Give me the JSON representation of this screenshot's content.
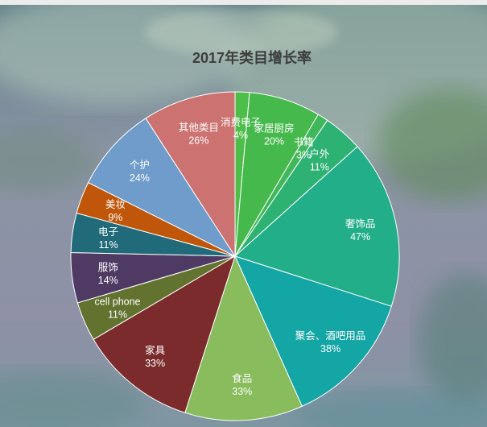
{
  "chart_data": {
    "type": "pie",
    "title": "2017年类目增长率",
    "categories": [
      "消费电子",
      "家居厨房",
      "书籍",
      "户外",
      "奢饰品",
      "聚会、酒吧用品",
      "食品",
      "家具",
      "cell phone",
      "服饰",
      "电子",
      "美妆",
      "个护",
      "其他类目"
    ],
    "values": [
      4,
      20,
      3,
      11,
      47,
      38,
      33,
      33,
      11,
      14,
      11,
      9,
      24,
      26
    ],
    "value_labels": [
      "4%",
      "20%",
      "3%",
      "11%",
      "47%",
      "38%",
      "33%",
      "33%",
      "11%",
      "14%",
      "11%",
      "9%",
      "24%",
      "26%"
    ],
    "colors": [
      "#4fbd4a",
      "#46b94c",
      "#3fb75a",
      "#2eb273",
      "#22ae88",
      "#14a5a5",
      "#88bc5c",
      "#7b2b2b",
      "#62732f",
      "#4f3a63",
      "#216a7a",
      "#bf560a",
      "#6f9ccb",
      "#cc7270"
    ],
    "start_angle_deg": 0,
    "direction": "clockwise",
    "legend": "none"
  }
}
